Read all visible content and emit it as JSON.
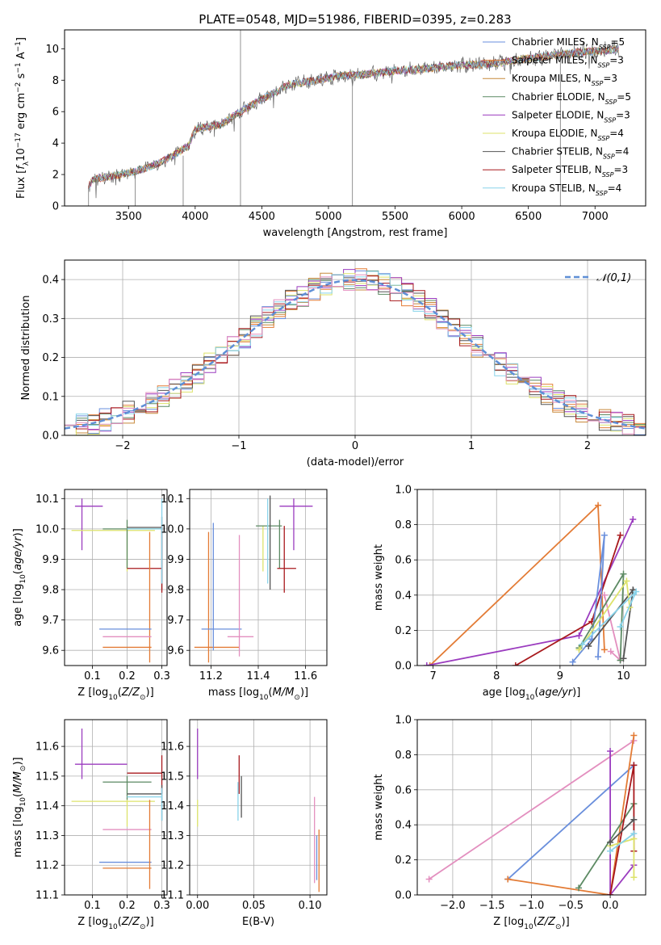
{
  "figure": {
    "title": "PLATE=0548, MJD=51986, FIBERID=0395, z=0.283"
  },
  "chart_data": [
    {
      "id": "spectrum",
      "type": "line",
      "title": "PLATE=0548, MJD=51986, FIBERID=0395, z=0.283",
      "xlabel": "wavelength [Angstrom, rest frame]",
      "ylabel": "Flux [fλ10⁻¹⁷ erg cm⁻² s⁻¹ A⁻¹]",
      "xlim": [
        3020,
        7380
      ],
      "ylim": [
        0,
        11.2
      ],
      "xticks": [
        "3500",
        "4000",
        "4500",
        "5000",
        "5500",
        "6000",
        "6500",
        "7000"
      ],
      "yticks": [
        "0",
        "2",
        "4",
        "6",
        "8",
        "10"
      ],
      "grid": false,
      "legend_position": "right",
      "continuum_anchors": [
        [
          3200,
          1.2
        ],
        [
          3230,
          1.7
        ],
        [
          3450,
          2.0
        ],
        [
          3600,
          2.3
        ],
        [
          3750,
          2.8
        ],
        [
          3850,
          3.3
        ],
        [
          3950,
          3.8
        ],
        [
          4000,
          4.9
        ],
        [
          4200,
          5.2
        ],
        [
          4300,
          5.8
        ],
        [
          4500,
          6.8
        ],
        [
          4700,
          7.7
        ],
        [
          4900,
          8.0
        ],
        [
          5100,
          8.3
        ],
        [
          5300,
          8.4
        ],
        [
          5500,
          8.6
        ],
        [
          5700,
          8.7
        ],
        [
          5900,
          8.9
        ],
        [
          6100,
          9.0
        ],
        [
          6300,
          9.1
        ],
        [
          6500,
          9.4
        ],
        [
          6700,
          9.6
        ],
        [
          6900,
          9.8
        ],
        [
          7100,
          9.9
        ],
        [
          7180,
          10.0
        ]
      ],
      "series": [
        {
          "name": "Chabrier MILES, N_SSP=5",
          "label_main": "Chabrier MILES, N",
          "label_sub": "SSP",
          "label_end": "=5",
          "color": "#6a8fdc"
        },
        {
          "name": "Salpeter MILES, N_SSP=3",
          "label_main": "Salpeter MILES, N",
          "label_sub": "SSP",
          "label_end": "=3",
          "color": "#e37b35"
        },
        {
          "name": "Kroupa MILES, N_SSP=3",
          "label_main": "Kroupa MILES, N",
          "label_sub": "SSP",
          "label_end": "=3",
          "color": "#c7893a"
        },
        {
          "name": "Chabrier ELODIE, N_SSP=5",
          "label_main": "Chabrier ELODIE, N",
          "label_sub": "SSP",
          "label_end": "=5",
          "color": "#5c8a63"
        },
        {
          "name": "Salpeter ELODIE, N_SSP=3",
          "label_main": "Salpeter ELODIE, N",
          "label_sub": "SSP",
          "label_end": "=3",
          "color": "#9b3cbf"
        },
        {
          "name": "Kroupa ELODIE, N_SSP=4",
          "label_main": "Kroupa ELODIE, N",
          "label_sub": "SSP",
          "label_end": "=4",
          "color": "#dde36b"
        },
        {
          "name": "Chabrier STELIB, N_SSP=4",
          "label_main": "Chabrier STELIB, N",
          "label_sub": "SSP",
          "label_end": "=4",
          "color": "#555555"
        },
        {
          "name": "Salpeter STELIB, N_SSP=3",
          "label_main": "Salpeter STELIB, N",
          "label_sub": "SSP",
          "label_end": "=3",
          "color": "#a8191d"
        },
        {
          "name": "Kroupa STELIB, N_SSP=4",
          "label_main": "Kroupa STELIB, N",
          "label_sub": "SSP",
          "label_end": "=4",
          "color": "#88d3ea"
        }
      ]
    },
    {
      "id": "residuals",
      "type": "bar",
      "title": "",
      "xlabel": "(data-model)/error",
      "ylabel": "Normed distribution",
      "xlim": [
        -2.5,
        2.5
      ],
      "ylim": [
        0,
        0.45
      ],
      "xticks": [
        "−2",
        "−1",
        "0",
        "1",
        "2"
      ],
      "yticks": [
        "0.0",
        "0.1",
        "0.2",
        "0.3",
        "0.4"
      ],
      "grid": true,
      "bin_width": 0.1,
      "reference_curve": {
        "name": "𝒩(0,1)",
        "color": "#5f8fd6",
        "style": "dashed"
      },
      "legend_position": "top-right"
    },
    {
      "id": "age_vs_Z",
      "type": "scatter",
      "xlabel": "Z [log10(Z/Z⊙)]",
      "ylabel": "age  [log10(age/yr)]",
      "xlim": [
        0.02,
        0.315
      ],
      "ylim": [
        9.55,
        10.13
      ],
      "xticks": [
        "0.1",
        "0.2",
        "0.3"
      ],
      "yticks": [
        "9.6",
        "9.7",
        "9.8",
        "9.9",
        "10.0",
        "10.1"
      ],
      "grid": true,
      "points": [
        {
          "color": "#9b3cbf",
          "x": 0.07,
          "y": 10.075,
          "xerr": [
            0.05,
            0.13
          ],
          "yerr": [
            9.93,
            10.1
          ]
        },
        {
          "color": "#dde36b",
          "x": 0.2,
          "y": 9.995,
          "xerr": [
            0.04,
            0.28
          ],
          "yerr": [
            9.86,
            10.01
          ]
        },
        {
          "color": "#5c8a63",
          "x": 0.2,
          "y": 10.0,
          "xerr": [
            0.13,
            0.3
          ],
          "yerr": [
            9.87,
            10.03
          ]
        },
        {
          "color": "#555555",
          "x": 0.3,
          "y": 10.005,
          "xerr": [
            0.2,
            0.3
          ],
          "yerr": [
            9.8,
            10.04
          ]
        },
        {
          "color": "#a8191d",
          "x": 0.3,
          "y": 9.87,
          "xerr": [
            0.2,
            0.3
          ],
          "yerr": [
            9.79,
            10.01
          ]
        },
        {
          "color": "#88d3ea",
          "x": 0.3,
          "y": 10.0,
          "xerr": [
            0.2,
            0.3
          ],
          "yerr": [
            9.82,
            10.1
          ]
        },
        {
          "color": "#e37b35",
          "x": 0.265,
          "y": 9.61,
          "xerr": [
            0.13,
            0.27
          ],
          "yerr": [
            9.56,
            9.99
          ]
        },
        {
          "color": "#6a8fdc",
          "x": 0.2,
          "y": 9.67,
          "xerr": [
            0.12,
            0.27
          ],
          "yerr": [
            9.67,
            9.67
          ]
        },
        {
          "color": "#e38fbf",
          "x": 0.2,
          "y": 9.645,
          "xerr": [
            0.13,
            0.27
          ],
          "yerr": [
            9.645,
            9.645
          ]
        }
      ]
    },
    {
      "id": "age_vs_mass",
      "type": "scatter",
      "xlabel": "mass [log10(M/M⊙)]",
      "ylabel": "",
      "xlim": [
        11.11,
        11.69
      ],
      "ylim": [
        9.55,
        10.13
      ],
      "xticks": [
        "11.2",
        "11.4",
        "11.6"
      ],
      "yticks": [
        "9.6",
        "9.7",
        "9.8",
        "9.9",
        "10.0",
        "10.1"
      ],
      "grid": true,
      "points": [
        {
          "color": "#9b3cbf",
          "x": 11.55,
          "y": 10.075,
          "xerr": [
            11.49,
            11.63
          ],
          "yerr": [
            9.93,
            10.1
          ]
        },
        {
          "color": "#dde36b",
          "x": 11.42,
          "y": 9.995,
          "xerr": [
            11.42,
            11.42
          ],
          "yerr": [
            9.86,
            10.01
          ]
        },
        {
          "color": "#5c8a63",
          "x": 11.49,
          "y": 10.01,
          "xerr": [
            11.39,
            11.5
          ],
          "yerr": [
            9.87,
            10.03
          ]
        },
        {
          "color": "#555555",
          "x": 11.45,
          "y": 10.005,
          "xerr": [
            11.45,
            11.45
          ],
          "yerr": [
            9.8,
            10.11
          ]
        },
        {
          "color": "#a8191d",
          "x": 11.51,
          "y": 9.87,
          "xerr": [
            11.48,
            11.56
          ],
          "yerr": [
            9.79,
            10.01
          ]
        },
        {
          "color": "#88d3ea",
          "x": 11.44,
          "y": 10.0,
          "xerr": [
            11.44,
            11.44
          ],
          "yerr": [
            9.82,
            10.1
          ]
        },
        {
          "color": "#e37b35",
          "x": 11.19,
          "y": 9.61,
          "xerr": [
            11.13,
            11.32
          ],
          "yerr": [
            9.56,
            9.99
          ]
        },
        {
          "color": "#6a8fdc",
          "x": 11.21,
          "y": 9.67,
          "xerr": [
            11.16,
            11.33
          ],
          "yerr": [
            9.6,
            10.02
          ]
        },
        {
          "color": "#e38fbf",
          "x": 11.32,
          "y": 9.645,
          "xerr": [
            11.27,
            11.38
          ],
          "yerr": [
            9.58,
            9.98
          ]
        }
      ]
    },
    {
      "id": "weight_vs_age",
      "type": "line",
      "xlabel": "age  [log10(age/yr)]",
      "ylabel": "mass weight",
      "xlim": [
        6.75,
        10.35
      ],
      "ylim": [
        0,
        1
      ],
      "xticks": [
        "7",
        "8",
        "9",
        "10"
      ],
      "yticks": [
        "0.0",
        "0.2",
        "0.4",
        "0.6",
        "0.8",
        "1.0"
      ],
      "grid": true,
      "series": [
        {
          "color": "#e37b35",
          "points": [
            [
              6.95,
              0.0
            ],
            [
              9.6,
              0.91
            ],
            [
              9.7,
              0.09
            ]
          ]
        },
        {
          "color": "#9b3cbf",
          "points": [
            [
              6.9,
              0.0
            ],
            [
              9.3,
              0.17
            ],
            [
              10.15,
              0.83
            ]
          ]
        },
        {
          "color": "#a8191d",
          "points": [
            [
              8.3,
              0.0
            ],
            [
              9.5,
              0.25
            ],
            [
              9.95,
              0.74
            ]
          ]
        },
        {
          "color": "#6a8fdc",
          "points": [
            [
              9.2,
              0.02
            ],
            [
              9.5,
              0.15
            ],
            [
              9.7,
              0.74
            ],
            [
              9.6,
              0.05
            ]
          ]
        },
        {
          "color": "#e38fbf",
          "points": [
            [
              9.8,
              0.08
            ],
            [
              9.95,
              0.03
            ],
            [
              9.7,
              0.4
            ]
          ]
        },
        {
          "color": "#5c8a63",
          "points": [
            [
              9.3,
              0.1
            ],
            [
              10.0,
              0.52
            ],
            [
              9.95,
              0.03
            ]
          ]
        },
        {
          "color": "#555555",
          "points": [
            [
              9.45,
              0.11
            ],
            [
              10.15,
              0.43
            ],
            [
              10.0,
              0.04
            ]
          ]
        },
        {
          "color": "#dde36b",
          "points": [
            [
              9.3,
              0.09
            ],
            [
              10.05,
              0.48
            ],
            [
              10.1,
              0.33
            ]
          ]
        },
        {
          "color": "#88d3ea",
          "points": [
            [
              9.35,
              0.12
            ],
            [
              10.2,
              0.42
            ],
            [
              9.95,
              0.22
            ]
          ]
        }
      ]
    },
    {
      "id": "mass_vs_Z",
      "type": "scatter",
      "xlabel": "Z [log10(Z/Z⊙)]",
      "ylabel": "mass [log10(M/M⊙)]",
      "xlim": [
        0.02,
        0.315
      ],
      "ylim": [
        11.1,
        11.69
      ],
      "xticks": [
        "0.1",
        "0.2",
        "0.3"
      ],
      "yticks": [
        "11.1",
        "11.2",
        "11.3",
        "11.4",
        "11.5",
        "11.6"
      ],
      "grid": true,
      "points": [
        {
          "color": "#9b3cbf",
          "x": 0.07,
          "y": 11.54,
          "xerr": [
            0.05,
            0.2
          ],
          "yerr": [
            11.49,
            11.66
          ]
        },
        {
          "color": "#a8191d",
          "x": 0.3,
          "y": 11.51,
          "xerr": [
            0.2,
            0.3
          ],
          "yerr": [
            11.44,
            11.57
          ]
        },
        {
          "color": "#5c8a63",
          "x": 0.2,
          "y": 11.48,
          "xerr": [
            0.13,
            0.27
          ],
          "yerr": [
            11.42,
            11.5
          ]
        },
        {
          "color": "#555555",
          "x": 0.3,
          "y": 11.44,
          "xerr": [
            0.2,
            0.3
          ],
          "yerr": [
            11.35,
            11.47
          ]
        },
        {
          "color": "#88d3ea",
          "x": 0.3,
          "y": 11.43,
          "xerr": [
            0.2,
            0.3
          ],
          "yerr": [
            11.35,
            11.46
          ]
        },
        {
          "color": "#dde36b",
          "x": 0.2,
          "y": 11.415,
          "xerr": [
            0.04,
            0.28
          ],
          "yerr": [
            11.33,
            11.42
          ]
        },
        {
          "color": "#e38fbf",
          "x": 0.2,
          "y": 11.32,
          "xerr": [
            0.13,
            0.27
          ],
          "yerr": [
            11.32,
            11.32
          ]
        },
        {
          "color": "#6a8fdc",
          "x": 0.2,
          "y": 11.21,
          "xerr": [
            0.12,
            0.27
          ],
          "yerr": [
            11.21,
            11.21
          ]
        },
        {
          "color": "#e37b35",
          "x": 0.265,
          "y": 11.19,
          "xerr": [
            0.13,
            0.27
          ],
          "yerr": [
            11.12,
            11.42
          ]
        }
      ]
    },
    {
      "id": "mass_vs_EBV",
      "type": "scatter",
      "xlabel": "E(B-V)",
      "ylabel": "",
      "xlim": [
        -0.007,
        0.115
      ],
      "ylim": [
        11.1,
        11.69
      ],
      "xticks": [
        "0.00",
        "0.05",
        "0.10"
      ],
      "yticks": [
        "11.1",
        "11.2",
        "11.3",
        "11.4",
        "11.5",
        "11.6"
      ],
      "grid": true,
      "points": [
        {
          "color": "#9b3cbf",
          "x": 0.0,
          "y": 11.54,
          "yerr": [
            11.49,
            11.66
          ]
        },
        {
          "color": "#dde36b",
          "x": 0.0,
          "y": 11.415,
          "yerr": [
            11.33,
            11.42
          ]
        },
        {
          "color": "#a8191d",
          "x": 0.037,
          "y": 11.51,
          "yerr": [
            11.44,
            11.57
          ]
        },
        {
          "color": "#88d3ea",
          "x": 0.036,
          "y": 11.43,
          "yerr": [
            11.35,
            11.48
          ]
        },
        {
          "color": "#555555",
          "x": 0.039,
          "y": 11.44,
          "yerr": [
            11.36,
            11.5
          ]
        },
        {
          "color": "#e38fbf",
          "x": 0.104,
          "y": 11.32,
          "yerr": [
            11.14,
            11.43
          ]
        },
        {
          "color": "#6a8fdc",
          "x": 0.106,
          "y": 11.21,
          "yerr": [
            11.15,
            11.3
          ]
        },
        {
          "color": "#e37b35",
          "x": 0.108,
          "y": 11.19,
          "yerr": [
            11.11,
            11.32
          ]
        }
      ]
    },
    {
      "id": "weight_vs_Z",
      "type": "line",
      "xlabel": "Z [log10(Z/Z⊙)]",
      "ylabel": "mass weight",
      "xlim": [
        -2.45,
        0.45
      ],
      "ylim": [
        0,
        1
      ],
      "xticks": [
        "−2.0",
        "−1.5",
        "−1.0",
        "−0.5",
        "0.0"
      ],
      "yticks": [
        "0.0",
        "0.2",
        "0.4",
        "0.6",
        "0.8",
        "1.0"
      ],
      "grid": true,
      "series": [
        {
          "color": "#e38fbf",
          "points": [
            [
              -2.3,
              0.09
            ],
            [
              0.3,
              0.88
            ]
          ]
        },
        {
          "color": "#6a8fdc",
          "points": [
            [
              -1.3,
              0.09
            ],
            [
              0.3,
              0.74
            ]
          ]
        },
        {
          "color": "#e37b35",
          "points": [
            [
              -1.3,
              0.09
            ],
            [
              0.0,
              0.0
            ],
            [
              0.3,
              0.91
            ]
          ]
        },
        {
          "color": "#5c8a63",
          "points": [
            [
              -0.4,
              0.04
            ],
            [
              0.3,
              0.52
            ]
          ]
        },
        {
          "color": "#9b3cbf",
          "points": [
            [
              0.0,
              0.82
            ],
            [
              0.0,
              0.0
            ],
            [
              0.3,
              0.17
            ]
          ]
        },
        {
          "color": "#a8191d",
          "points": [
            [
              0.0,
              0.0
            ],
            [
              0.3,
              0.74
            ],
            [
              0.3,
              0.25
            ]
          ]
        },
        {
          "color": "#dde36b",
          "points": [
            [
              0.0,
              0.28
            ],
            [
              0.3,
              0.32
            ],
            [
              0.3,
              0.1
            ]
          ]
        },
        {
          "color": "#555555",
          "points": [
            [
              0.0,
              0.3
            ],
            [
              0.3,
              0.43
            ]
          ]
        },
        {
          "color": "#88d3ea",
          "points": [
            [
              0.0,
              0.25
            ],
            [
              0.3,
              0.35
            ]
          ]
        }
      ]
    }
  ]
}
